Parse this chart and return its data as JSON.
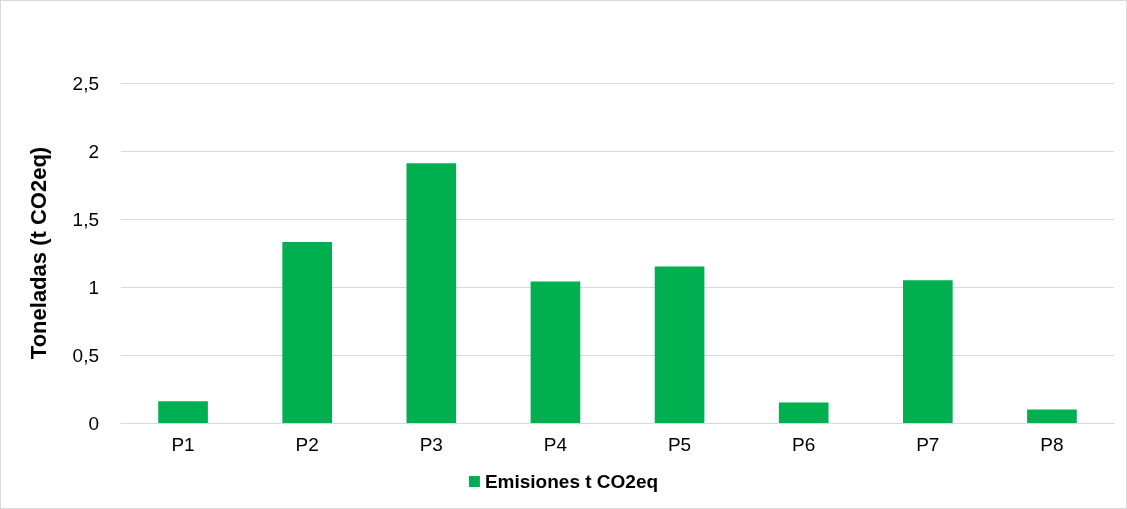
{
  "chart_data": {
    "type": "bar",
    "ylabel": "Toneladas (t CO2eq)",
    "categories": [
      "P1",
      "P2",
      "P3",
      "P4",
      "P5",
      "P6",
      "P7",
      "P8"
    ],
    "series": [
      {
        "name": "Emisiones t CO2eq",
        "color": "#00b050",
        "values": [
          0.16,
          1.33,
          1.91,
          1.04,
          1.15,
          0.15,
          1.05,
          0.1
        ]
      }
    ],
    "ylim": [
      0,
      2.5
    ],
    "yticks": [
      0,
      {
        "value": 0.5,
        "label": "0,5"
      },
      1,
      {
        "value": 1.5,
        "label": "1,5"
      },
      2,
      {
        "value": 2.5,
        "label": "2,5"
      }
    ],
    "grid": "y",
    "legend": "bottom"
  }
}
